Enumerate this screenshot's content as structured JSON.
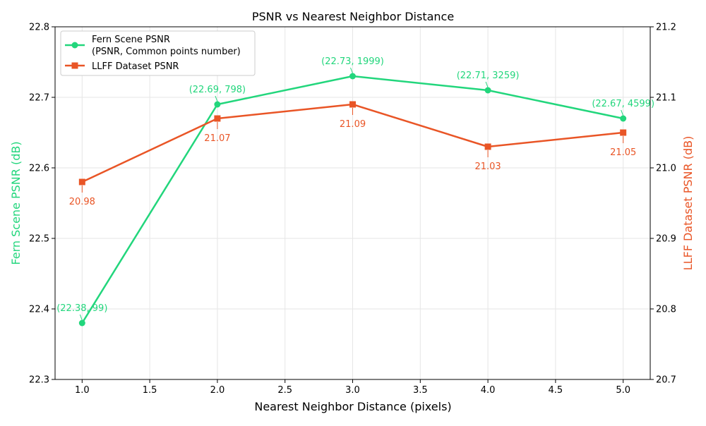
{
  "chart_data": {
    "type": "line",
    "title": "PSNR vs Nearest Neighbor Distance",
    "xlabel": "Nearest Neighbor Distance (pixels)",
    "ylabel_left": "Fern Scene PSNR (dB)",
    "ylabel_right": "LLFF Dataset PSNR (dB)",
    "x_ticks": [
      "1.0",
      "1.5",
      "2.0",
      "2.5",
      "3.0",
      "3.5",
      "4.0",
      "4.5",
      "5.0"
    ],
    "x_tick_values": [
      1.0,
      1.5,
      2.0,
      2.5,
      3.0,
      3.5,
      4.0,
      4.5,
      5.0
    ],
    "xlim": [
      0.8,
      5.2
    ],
    "y_left_ticks": [
      "22.3",
      "22.4",
      "22.5",
      "22.6",
      "22.7",
      "22.8"
    ],
    "y_left_tick_values": [
      22.3,
      22.4,
      22.5,
      22.6,
      22.7,
      22.8
    ],
    "ylim_left": [
      22.3,
      22.8
    ],
    "y_right_ticks": [
      "20.7",
      "20.8",
      "20.9",
      "21.0",
      "21.1",
      "21.2"
    ],
    "y_right_tick_values": [
      20.7,
      20.8,
      20.9,
      21.0,
      21.1,
      21.2
    ],
    "ylim_right": [
      20.7,
      21.2
    ],
    "grid": true,
    "legend_position": "top-left",
    "series": [
      {
        "name": "Fern Scene PSNR",
        "legend_line1": "Fern Scene PSNR",
        "legend_line2": "(PSNR, Common points number)",
        "axis": "left",
        "color": "#22d67c",
        "marker": "circle",
        "x": [
          1,
          2,
          3,
          4,
          5
        ],
        "values": [
          22.38,
          22.69,
          22.73,
          22.71,
          22.67
        ],
        "labels": [
          "(22.38, 99)",
          "(22.69, 798)",
          "(22.73, 1999)",
          "(22.71, 3259)",
          "(22.67, 4599)"
        ]
      },
      {
        "name": "LLFF Dataset PSNR",
        "axis": "right",
        "color": "#e95526",
        "marker": "square",
        "x": [
          1,
          2,
          3,
          4,
          5
        ],
        "values": [
          20.98,
          21.07,
          21.09,
          21.03,
          21.05
        ],
        "labels": [
          "20.98",
          "21.07",
          "21.09",
          "21.03",
          "21.05"
        ]
      }
    ]
  }
}
